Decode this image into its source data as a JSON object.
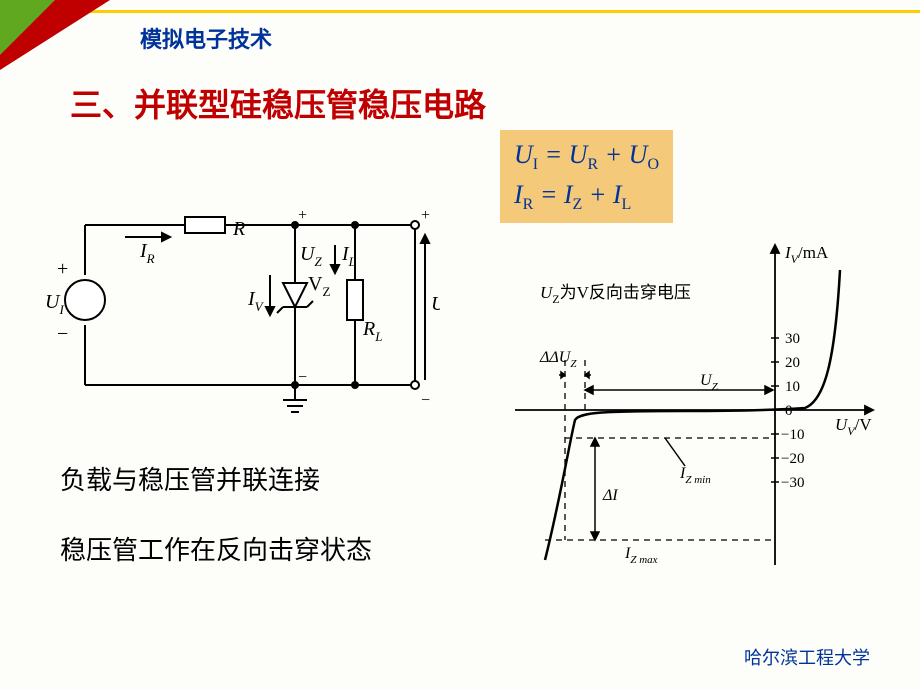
{
  "colors": {
    "red": "#c00000",
    "yellow": "#ffcc00",
    "green": "#5fa820",
    "blue": "#003399",
    "orange_bg": "#f4c97a",
    "black": "#000000"
  },
  "header": {
    "subject": "模拟电子技术"
  },
  "title": "三、并联型硅稳压管稳压电路",
  "equations": {
    "line1": "U<sub>I</sub> = U<sub>R</sub> + U<sub>O</sub>",
    "line2": "I<sub>R</sub> = I<sub>Z</sub> + I<sub>L</sub>"
  },
  "circuit": {
    "U_I": "U",
    "U_I_sub": "I",
    "I_R": "I",
    "I_R_sub": "R",
    "R": "R",
    "U_Z": "U",
    "U_Z_sub": "Z",
    "I_V": "I",
    "I_V_sub": "V",
    "V_Z": "V",
    "V_Z_sub": "Z",
    "I_L": "I",
    "I_L_sub": "L",
    "R_L": "R",
    "R_L_sub": "L",
    "U_o": "U",
    "U_o_sub": "o",
    "plus": "+",
    "minus": "−"
  },
  "chart": {
    "y_label": "I",
    "y_label_sub": "V",
    "y_unit": "/mA",
    "x_label": "U",
    "x_label_sub": "V",
    "x_unit": "/V",
    "note": "U",
    "note_sub": "Z",
    "note_rest": "为V反向击穿电压",
    "dU_Z": "ΔU",
    "dU_Z_sub": "Z",
    "U_Z_lbl": "U",
    "U_Z_lbl_sub": "Z",
    "dI": "ΔI",
    "I_Zmin": "I",
    "I_Zmin_sub": "Z min",
    "I_Zmax": "I",
    "I_Zmax_sub": "Z max",
    "y_ticks": [
      30,
      20,
      10,
      0,
      -10,
      -20,
      -30
    ]
  },
  "body": {
    "line1": "负载与稳压管并联连接",
    "line2": "稳压管工作在反向击穿状态"
  },
  "footer": "哈尔滨工程大学"
}
